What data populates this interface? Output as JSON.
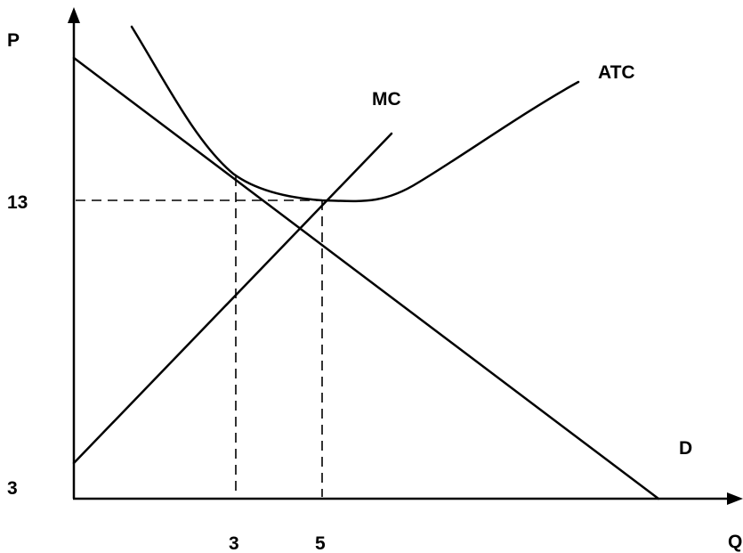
{
  "axes": {
    "y_label": "P",
    "x_label": "Q"
  },
  "y_ticks": [
    "13",
    "3"
  ],
  "x_ticks": [
    "3",
    "5"
  ],
  "curves": {
    "mc": "MC",
    "atc": "ATC",
    "demand": "D"
  }
}
